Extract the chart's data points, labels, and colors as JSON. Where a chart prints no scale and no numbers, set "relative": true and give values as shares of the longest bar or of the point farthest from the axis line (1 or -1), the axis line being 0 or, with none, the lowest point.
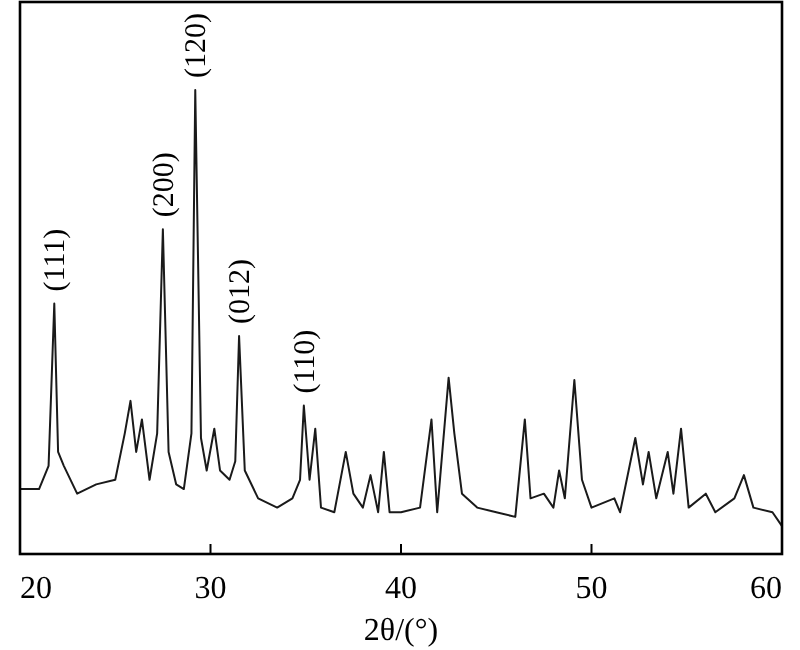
{
  "chart_data": {
    "type": "line",
    "relative": true,
    "xlabel": "2θ/(°)",
    "xlim": [
      20,
      60
    ],
    "xticks": [
      20,
      30,
      40,
      50,
      60
    ],
    "color": "#1a1a1a",
    "tick_labels": "x",
    "grid": false,
    "marker": "none",
    "line_style": "solid",
    "x": [
      20,
      21,
      21.5,
      21.8,
      22.0,
      22.3,
      23,
      24,
      25,
      25.5,
      25.8,
      26.1,
      26.4,
      26.8,
      27.2,
      27.5,
      27.8,
      28.2,
      28.6,
      29.0,
      29.2,
      29.5,
      29.8,
      30.2,
      30.5,
      31.0,
      31.3,
      31.5,
      31.8,
      32.5,
      33.5,
      34.3,
      34.7,
      34.9,
      35.2,
      35.5,
      35.8,
      36.5,
      37.1,
      37.5,
      38.0,
      38.4,
      38.8,
      39.1,
      39.4,
      40,
      41.0,
      41.6,
      41.9,
      42.5,
      42.8,
      43.2,
      44,
      45,
      46,
      46.5,
      46.8,
      47.5,
      48.0,
      48.3,
      48.6,
      49.1,
      49.5,
      50,
      51.2,
      51.5,
      52.3,
      52.7,
      53.0,
      53.4,
      54.0,
      54.3,
      54.7,
      55.1,
      56.0,
      56.5,
      57.5,
      58.0,
      58.5,
      59.5,
      60
    ],
    "values": [
      0.14,
      0.14,
      0.19,
      0.54,
      0.22,
      0.19,
      0.13,
      0.15,
      0.16,
      0.26,
      0.33,
      0.22,
      0.29,
      0.16,
      0.26,
      0.7,
      0.22,
      0.15,
      0.14,
      0.26,
      1.0,
      0.25,
      0.18,
      0.27,
      0.18,
      0.16,
      0.2,
      0.47,
      0.18,
      0.12,
      0.1,
      0.12,
      0.16,
      0.32,
      0.16,
      0.27,
      0.1,
      0.09,
      0.22,
      0.13,
      0.1,
      0.17,
      0.09,
      0.22,
      0.09,
      0.09,
      0.1,
      0.29,
      0.09,
      0.38,
      0.26,
      0.13,
      0.1,
      0.09,
      0.08,
      0.29,
      0.12,
      0.13,
      0.1,
      0.18,
      0.12,
      0.375,
      0.16,
      0.1,
      0.12,
      0.09,
      0.25,
      0.15,
      0.22,
      0.12,
      0.22,
      0.13,
      0.27,
      0.1,
      0.13,
      0.09,
      0.12,
      0.17,
      0.1,
      0.09,
      0.06
    ],
    "annotations": [
      {
        "text": "(111)",
        "x": 21.8,
        "y": 0.54
      },
      {
        "text": "(200)",
        "x": 27.5,
        "y": 0.7
      },
      {
        "text": "(120)",
        "x": 29.2,
        "y": 1.0
      },
      {
        "text": "(012)",
        "x": 31.5,
        "y": 0.47
      },
      {
        "text": "(110)",
        "x": 34.9,
        "y": 0.32
      }
    ]
  }
}
